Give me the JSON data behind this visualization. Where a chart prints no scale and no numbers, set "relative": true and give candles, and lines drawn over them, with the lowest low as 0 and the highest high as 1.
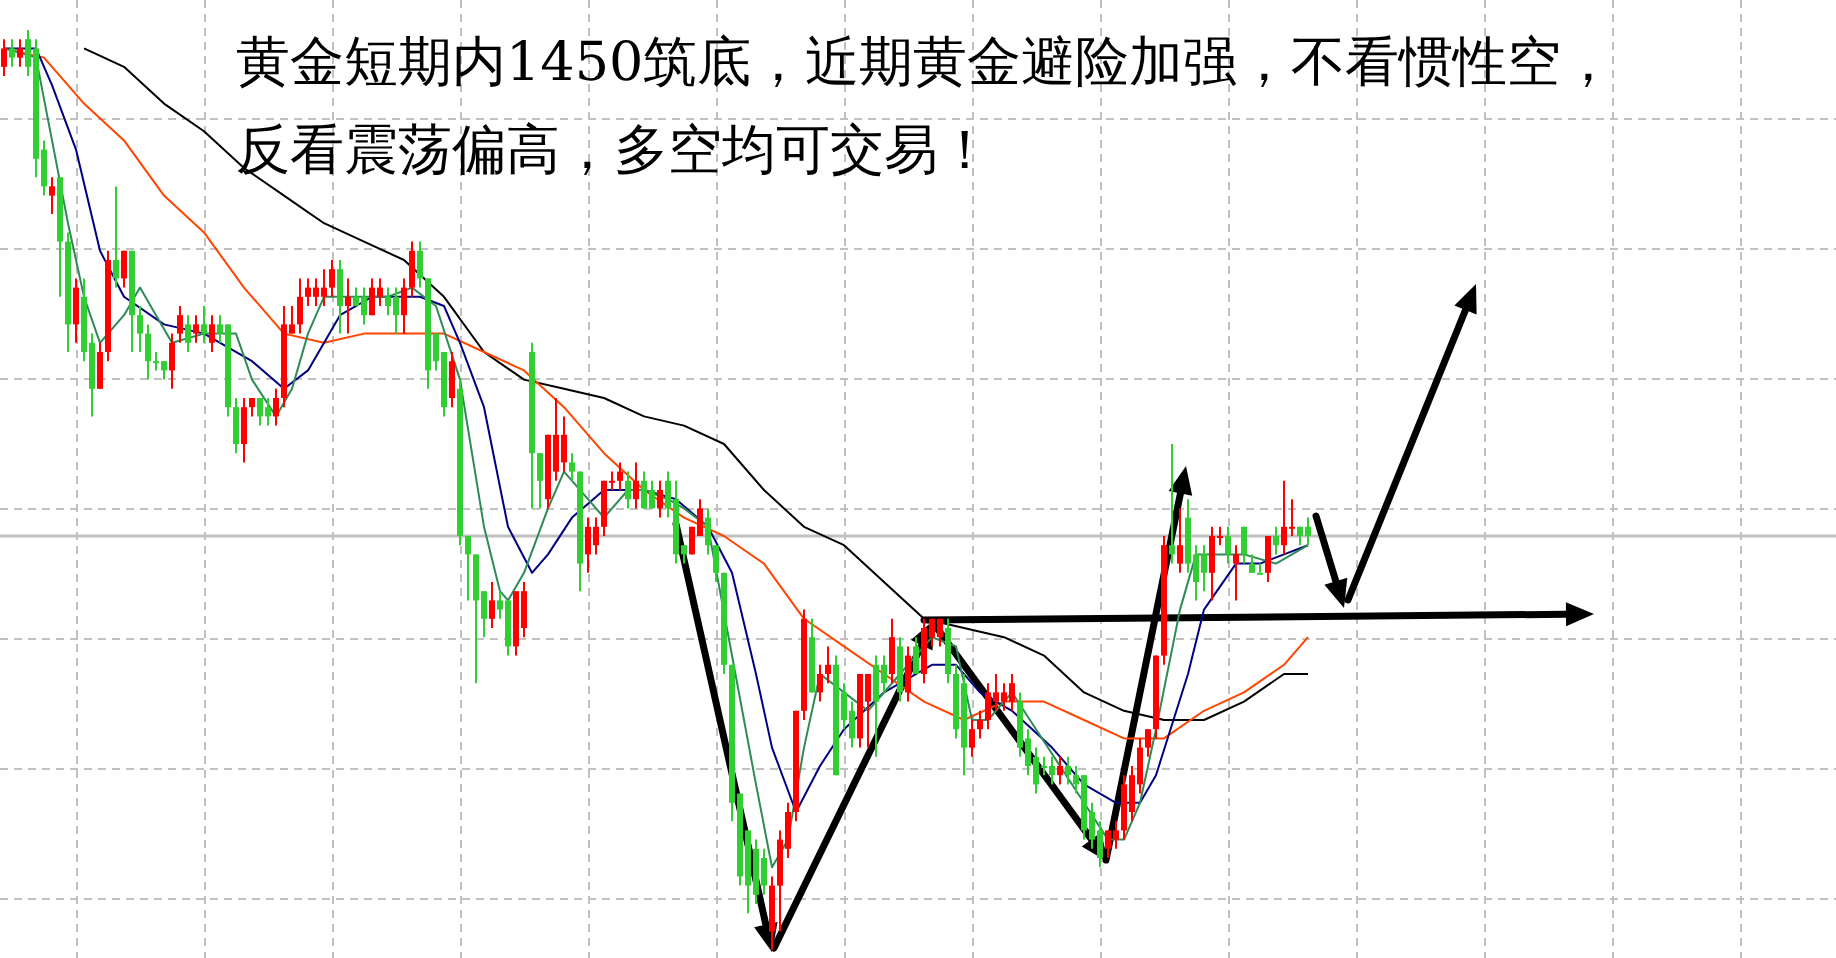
{
  "chart_data": {
    "type": "candlestick",
    "title": "黄金短期内1450筑底，近期黄金避险加强，不看惯性空，反看震荡偏高，多空均可交易！",
    "relative": true,
    "grid": true,
    "categories": [
      null,
      null,
      null,
      null,
      null,
      null,
      null,
      null,
      null,
      null,
      null,
      null,
      null,
      null,
      null,
      null,
      null,
      null,
      null,
      null,
      null,
      null,
      null,
      null,
      null,
      null,
      null,
      null,
      null,
      null,
      null,
      null,
      null,
      null,
      null,
      null,
      null,
      null,
      null,
      null,
      null,
      null,
      null,
      null,
      null,
      null,
      null,
      null,
      null,
      null,
      null,
      null,
      null,
      null,
      null,
      null,
      null,
      null,
      null,
      null,
      null,
      null,
      null,
      null,
      null,
      null,
      null,
      null,
      null,
      null,
      null,
      null,
      null,
      null,
      null,
      null,
      null,
      null,
      null,
      null,
      null,
      null,
      null,
      null,
      null,
      null,
      null,
      null,
      null,
      null,
      null,
      null,
      null,
      null,
      null,
      null,
      null,
      null,
      null,
      null,
      null,
      null,
      null,
      null,
      null,
      null,
      null,
      null,
      null,
      null,
      null,
      null,
      null,
      null,
      null,
      null,
      null,
      null,
      null,
      null,
      null,
      null,
      null,
      null,
      null,
      null,
      null,
      null,
      null,
      null,
      null,
      null,
      null,
      null,
      null,
      null,
      null,
      null,
      null,
      null,
      null,
      null,
      null,
      null,
      null,
      null,
      null,
      null,
      null,
      null,
      null,
      null,
      null,
      null,
      null,
      null,
      null,
      null,
      null,
      null,
      null,
      null,
      null,
      null
    ],
    "ohlc": [
      [
        0.96,
        0.99,
        0.95,
        0.98
      ],
      [
        0.98,
        0.99,
        0.96,
        0.97
      ],
      [
        0.97,
        0.99,
        0.96,
        0.98
      ],
      [
        0.99,
        1,
        0.95,
        0.96
      ],
      [
        0.98,
        0.99,
        0.84,
        0.86
      ],
      [
        0.87,
        0.88,
        0.82,
        0.83
      ],
      [
        0.82,
        0.84,
        0.8,
        0.83
      ],
      [
        0.84,
        0.84,
        0.71,
        0.77
      ],
      [
        0.77,
        0.78,
        0.65,
        0.68
      ],
      [
        0.68,
        0.73,
        0.66,
        0.72
      ],
      [
        0.71,
        0.73,
        0.64,
        0.65
      ],
      [
        0.66,
        0.67,
        0.58,
        0.61
      ],
      [
        0.61,
        0.66,
        0.61,
        0.65
      ],
      [
        0.65,
        0.76,
        0.64,
        0.75
      ],
      [
        0.75,
        0.83,
        0.72,
        0.73
      ],
      [
        0.73,
        0.76,
        0.72,
        0.76
      ],
      [
        0.76,
        0.76,
        0.65,
        0.69
      ],
      [
        0.69,
        0.7,
        0.65,
        0.67
      ],
      [
        0.67,
        0.68,
        0.62,
        0.64
      ],
      [
        0.64,
        0.65,
        0.63,
        0.64
      ],
      [
        0.64,
        0.64,
        0.62,
        0.63
      ],
      [
        0.63,
        0.67,
        0.61,
        0.66
      ],
      [
        0.67,
        0.7,
        0.66,
        0.69
      ],
      [
        0.68,
        0.69,
        0.65,
        0.66
      ],
      [
        0.67,
        0.69,
        0.66,
        0.68
      ],
      [
        0.68,
        0.7,
        0.66,
        0.67
      ],
      [
        0.66,
        0.69,
        0.65,
        0.68
      ],
      [
        0.68,
        0.69,
        0.66,
        0.67
      ],
      [
        0.68,
        0.68,
        0.58,
        0.59
      ],
      [
        0.59,
        0.6,
        0.54,
        0.55
      ],
      [
        0.55,
        0.6,
        0.53,
        0.59
      ],
      [
        0.59,
        0.6,
        0.58,
        0.6
      ],
      [
        0.6,
        0.6,
        0.57,
        0.58
      ],
      [
        0.59,
        0.6,
        0.57,
        0.58
      ],
      [
        0.58,
        0.61,
        0.57,
        0.6
      ],
      [
        0.6,
        0.7,
        0.59,
        0.68
      ],
      [
        0.67,
        0.7,
        0.67,
        0.68
      ],
      [
        0.68,
        0.73,
        0.67,
        0.71
      ],
      [
        0.71,
        0.73,
        0.7,
        0.72
      ],
      [
        0.71,
        0.73,
        0.7,
        0.72
      ],
      [
        0.71,
        0.74,
        0.7,
        0.72
      ],
      [
        0.72,
        0.75,
        0.71,
        0.74
      ],
      [
        0.74,
        0.75,
        0.67,
        0.7
      ],
      [
        0.7,
        0.73,
        0.67,
        0.71
      ],
      [
        0.71,
        0.72,
        0.7,
        0.7
      ],
      [
        0.71,
        0.72,
        0.68,
        0.69
      ],
      [
        0.69,
        0.73,
        0.69,
        0.72
      ],
      [
        0.71,
        0.73,
        0.7,
        0.72
      ],
      [
        0.71,
        0.72,
        0.69,
        0.7
      ],
      [
        0.71,
        0.72,
        0.67,
        0.69
      ],
      [
        0.69,
        0.73,
        0.67,
        0.72
      ],
      [
        0.72,
        0.77,
        0.71,
        0.76
      ],
      [
        0.76,
        0.77,
        0.72,
        0.73
      ],
      [
        0.73,
        0.73,
        0.61,
        0.63
      ],
      [
        0.67,
        0.67,
        0.63,
        0.64
      ],
      [
        0.65,
        0.65,
        0.58,
        0.59
      ],
      [
        0.6,
        0.65,
        0.59,
        0.64
      ],
      [
        0.61,
        0.62,
        0.44,
        0.45
      ],
      [
        0.45,
        0.45,
        0.38,
        0.43
      ],
      [
        0.43,
        0.43,
        0.29,
        0.38
      ],
      [
        0.39,
        0.39,
        0.34,
        0.36
      ],
      [
        0.36,
        0.4,
        0.35,
        0.38
      ],
      [
        0.38,
        0.39,
        0.36,
        0.37
      ],
      [
        0.38,
        0.38,
        0.32,
        0.33
      ],
      [
        0.33,
        0.39,
        0.32,
        0.39
      ],
      [
        0.35,
        0.4,
        0.34,
        0.39
      ],
      [
        0.65,
        0.66,
        0.48,
        0.54
      ],
      [
        0.54,
        0.54,
        0.48,
        0.51
      ],
      [
        0.49,
        0.56,
        0.48,
        0.56
      ],
      [
        0.52,
        0.6,
        0.51,
        0.56
      ],
      [
        0.53,
        0.58,
        0.52,
        0.56
      ],
      [
        0.53,
        0.54,
        0.51,
        0.52
      ],
      [
        0.52,
        0.52,
        0.39,
        0.42
      ],
      [
        0.43,
        0.47,
        0.41,
        0.46
      ],
      [
        0.44,
        0.47,
        0.43,
        0.46
      ],
      [
        0.46,
        0.51,
        0.45,
        0.51
      ],
      [
        0.51,
        0.52,
        0.5,
        0.51
      ],
      [
        0.51,
        0.53,
        0.5,
        0.52
      ],
      [
        0.51,
        0.52,
        0.48,
        0.49
      ],
      [
        0.49,
        0.53,
        0.48,
        0.51
      ],
      [
        0.51,
        0.52,
        0.48,
        0.48
      ],
      [
        0.5,
        0.51,
        0.48,
        0.48
      ],
      [
        0.48,
        0.51,
        0.47,
        0.5
      ],
      [
        0.51,
        0.52,
        0.47,
        0.48
      ],
      [
        0.49,
        0.51,
        0.42,
        0.43
      ],
      [
        0.44,
        0.44,
        0.42,
        0.43
      ],
      [
        0.43,
        0.46,
        0.43,
        0.46
      ],
      [
        0.45,
        0.49,
        0.45,
        0.48
      ],
      [
        0.47,
        0.48,
        0.43,
        0.44
      ],
      [
        0.44,
        0.44,
        0.4,
        0.41
      ],
      [
        0.41,
        0.41,
        0.3,
        0.31
      ],
      [
        0.31,
        0.31,
        0.14,
        0.16
      ],
      [
        0.17,
        0.17,
        0.07,
        0.08
      ],
      [
        0.13,
        0.13,
        0.04,
        0.07
      ],
      [
        0.11,
        0.12,
        0.05,
        0.06
      ],
      [
        0.1,
        0.11,
        0.06,
        0.07
      ],
      [
        0.02,
        0.08,
        0,
        0.07
      ],
      [
        0.07,
        0.13,
        0.02,
        0.12
      ],
      [
        0.11,
        0.16,
        0.1,
        0.15
      ],
      [
        0.15,
        0.26,
        0.14,
        0.26
      ],
      [
        0.26,
        0.37,
        0.25,
        0.36
      ],
      [
        0.34,
        0.36,
        0.28,
        0.28
      ],
      [
        0.28,
        0.31,
        0.27,
        0.3
      ],
      [
        0.3,
        0.33,
        0.29,
        0.31
      ],
      [
        0.31,
        0.32,
        0.19,
        0.19
      ],
      [
        0.28,
        0.29,
        0.24,
        0.25
      ],
      [
        0.26,
        0.27,
        0.22,
        0.23
      ],
      [
        0.23,
        0.3,
        0.22,
        0.3
      ],
      [
        0.27,
        0.3,
        0.22,
        0.3
      ],
      [
        0.31,
        0.32,
        0.21,
        0.27
      ],
      [
        0.31,
        0.32,
        0.28,
        0.29
      ],
      [
        0.3,
        0.36,
        0.29,
        0.34
      ],
      [
        0.33,
        0.34,
        0.27,
        0.28
      ],
      [
        0.28,
        0.33,
        0.27,
        0.32
      ],
      [
        0.33,
        0.34,
        0.3,
        0.3
      ],
      [
        0.3,
        0.36,
        0.29,
        0.35
      ],
      [
        0.34,
        0.36,
        0.33,
        0.36
      ],
      [
        0.34,
        0.36,
        0.33,
        0.36
      ],
      [
        0.35,
        0.36,
        0.29,
        0.3
      ],
      [
        0.3,
        0.31,
        0.23,
        0.24
      ],
      [
        0.29,
        0.3,
        0.19,
        0.22
      ],
      [
        0.22,
        0.25,
        0.21,
        0.24
      ],
      [
        0.24,
        0.26,
        0.23,
        0.25
      ],
      [
        0.25,
        0.29,
        0.24,
        0.28
      ],
      [
        0.27,
        0.3,
        0.26,
        0.28
      ],
      [
        0.27,
        0.29,
        0.26,
        0.28
      ],
      [
        0.27,
        0.3,
        0.26,
        0.29
      ],
      [
        0.27,
        0.28,
        0.21,
        0.22
      ],
      [
        0.23,
        0.24,
        0.19,
        0.2
      ],
      [
        0.21,
        0.22,
        0.17,
        0.18
      ],
      [
        0.2,
        0.21,
        0.19,
        0.2
      ],
      [
        0.2,
        0.21,
        0.18,
        0.19
      ],
      [
        0.19,
        0.21,
        0.18,
        0.2
      ],
      [
        0.2,
        0.21,
        0.18,
        0.19
      ],
      [
        0.19,
        0.2,
        0.17,
        0.18
      ],
      [
        0.19,
        0.19,
        0.12,
        0.13
      ],
      [
        0.15,
        0.16,
        0.11,
        0.12
      ],
      [
        0.13,
        0.14,
        0.09,
        0.1
      ],
      [
        0.11,
        0.13,
        0.1,
        0.13
      ],
      [
        0.12,
        0.14,
        0.11,
        0.13
      ],
      [
        0.13,
        0.19,
        0.12,
        0.18
      ],
      [
        0.15,
        0.2,
        0.14,
        0.19
      ],
      [
        0.18,
        0.23,
        0.17,
        0.22
      ],
      [
        0.22,
        0.24,
        0.21,
        0.24
      ],
      [
        0.24,
        0.32,
        0.23,
        0.32
      ],
      [
        0.32,
        0.45,
        0.31,
        0.44
      ],
      [
        0.44,
        0.55,
        0.42,
        0.43
      ],
      [
        0.42,
        0.48,
        0.41,
        0.44
      ],
      [
        0.47,
        0.49,
        0.41,
        0.42
      ],
      [
        0.43,
        0.44,
        0.38,
        0.4
      ],
      [
        0.43,
        0.44,
        0.39,
        0.41
      ],
      [
        0.41,
        0.46,
        0.38,
        0.45
      ],
      [
        0.45,
        0.46,
        0.44,
        0.45
      ],
      [
        0.45,
        0.46,
        0.42,
        0.43
      ],
      [
        0.42,
        0.44,
        0.38,
        0.43
      ],
      [
        0.46,
        0.46,
        0.42,
        0.43
      ],
      [
        0.42,
        0.43,
        0.41,
        0.41
      ],
      [
        0.41,
        0.42,
        0.41,
        0.41
      ],
      [
        0.41,
        0.45,
        0.4,
        0.45
      ],
      [
        0.45,
        0.46,
        0.43,
        0.44
      ],
      [
        0.44,
        0.51,
        0.43,
        0.46
      ],
      [
        0.46,
        0.49,
        0.45,
        0.46
      ],
      [
        0.46,
        0.46,
        0.44,
        0.45
      ],
      [
        0.46,
        0.47,
        0.44,
        0.45
      ]
    ],
    "colors": [
      "#ff0000",
      "#32cd32",
      "#ff0000",
      "#32cd32",
      "#32cd32",
      "#32cd32",
      "#ff0000",
      "#32cd32",
      "#32cd32",
      "#ff0000",
      "#32cd32",
      "#32cd32",
      "#ff0000",
      "#ff0000",
      "#32cd32",
      "#ff0000",
      "#32cd32",
      "#32cd32",
      "#32cd32",
      "#32cd32",
      "#32cd32",
      "#ff0000",
      "#ff0000",
      "#32cd32",
      "#ff0000",
      "#32cd32",
      "#ff0000",
      "#32cd32",
      "#32cd32",
      "#32cd32",
      "#ff0000",
      "#ff0000",
      "#32cd32",
      "#32cd32",
      "#ff0000",
      "#ff0000",
      "#ff0000",
      "#ff0000",
      "#ff0000",
      "#ff0000",
      "#ff0000",
      "#ff0000",
      "#32cd32",
      "#ff0000",
      "#32cd32",
      "#32cd32",
      "#ff0000",
      "#ff0000",
      "#32cd32",
      "#32cd32",
      "#ff0000",
      "#ff0000",
      "#32cd32",
      "#32cd32",
      "#32cd32",
      "#32cd32",
      "#ff0000",
      "#32cd32",
      "#32cd32",
      "#32cd32",
      "#32cd32",
      "#ff0000",
      "#32cd32",
      "#32cd32",
      "#ff0000",
      "#ff0000",
      "#32cd32",
      "#32cd32",
      "#ff0000",
      "#ff0000",
      "#ff0000",
      "#32cd32",
      "#32cd32",
      "#ff0000",
      "#ff0000",
      "#ff0000",
      "#ff0000",
      "#ff0000",
      "#32cd32",
      "#ff0000",
      "#32cd32",
      "#32cd32",
      "#ff0000",
      "#32cd32",
      "#32cd32",
      "#32cd32",
      "#ff0000",
      "#ff0000",
      "#32cd32",
      "#32cd32",
      "#32cd32",
      "#32cd32",
      "#32cd32",
      "#32cd32",
      "#32cd32",
      "#32cd32",
      "#ff0000",
      "#ff0000",
      "#ff0000",
      "#ff0000",
      "#ff0000",
      "#32cd32",
      "#ff0000",
      "#ff0000",
      "#32cd32",
      "#32cd32",
      "#32cd32",
      "#ff0000",
      "#ff0000",
      "#32cd32",
      "#32cd32",
      "#ff0000",
      "#32cd32",
      "#ff0000",
      "#32cd32",
      "#ff0000",
      "#ff0000",
      "#ff0000",
      "#32cd32",
      "#32cd32",
      "#32cd32",
      "#ff0000",
      "#ff0000",
      "#ff0000",
      "#ff0000",
      "#ff0000",
      "#ff0000",
      "#32cd32",
      "#32cd32",
      "#32cd32",
      "#32cd32",
      "#32cd32",
      "#ff0000",
      "#32cd32",
      "#32cd32",
      "#32cd32",
      "#32cd32",
      "#32cd32",
      "#ff0000",
      "#ff0000",
      "#ff0000",
      "#ff0000",
      "#ff0000",
      "#ff0000",
      "#ff0000",
      "#ff0000",
      "#32cd32",
      "#ff0000",
      "#32cd32",
      "#32cd32",
      "#32cd32",
      "#ff0000",
      "#ff0000",
      "#32cd32",
      "#ff0000",
      "#32cd32",
      "#32cd32",
      "#32cd32",
      "#ff0000",
      "#32cd32",
      "#ff0000",
      "#ff0000",
      "#32cd32",
      "#32cd32"
    ],
    "series": [
      {
        "type": "line",
        "color": "#000000",
        "values": [
          null,
          null,
          null,
          null,
          null,
          null,
          null,
          null,
          null,
          null,
          0.98,
          null,
          null,
          null,
          null,
          0.96,
          null,
          null,
          null,
          null,
          0.92,
          null,
          null,
          null,
          null,
          0.89,
          null,
          null,
          null,
          null,
          0.85,
          null,
          null,
          null,
          null,
          0.82,
          null,
          null,
          null,
          null,
          0.79,
          null,
          null,
          null,
          null,
          0.77,
          null,
          null,
          null,
          null,
          0.75,
          null,
          null,
          null,
          null,
          0.71,
          null,
          null,
          null,
          null,
          0.65,
          null,
          null,
          null,
          null,
          0.62,
          null,
          null,
          null,
          null,
          0.61,
          null,
          null,
          null,
          null,
          0.6,
          null,
          null,
          null,
          null,
          0.58,
          null,
          null,
          null,
          null,
          0.57,
          null,
          null,
          null,
          null,
          0.55,
          null,
          null,
          null,
          null,
          0.5,
          null,
          null,
          null,
          null,
          0.46,
          null,
          null,
          null,
          null,
          0.44,
          null,
          null,
          null,
          null,
          0.4,
          null,
          null,
          null,
          null,
          0.36,
          null,
          null,
          null,
          null,
          0.35,
          null,
          null,
          null,
          null,
          0.34,
          null,
          null,
          null,
          null,
          0.32,
          null,
          null,
          null,
          null,
          0.28,
          null,
          null,
          null,
          null,
          0.26,
          null,
          null,
          null,
          null,
          0.25,
          null,
          null,
          null,
          null,
          0.25,
          null,
          null,
          null,
          null,
          0.27,
          null,
          null,
          null,
          null,
          0.3,
          null,
          null,
          0.3
        ]
      },
      {
        "type": "line",
        "color": "#ff4500",
        "values": [
          0.98,
          null,
          null,
          null,
          null,
          0.97,
          null,
          null,
          null,
          null,
          0.92,
          null,
          null,
          null,
          null,
          0.88,
          null,
          null,
          null,
          null,
          0.82,
          null,
          null,
          null,
          null,
          0.78,
          null,
          null,
          null,
          null,
          0.72,
          null,
          null,
          null,
          null,
          0.67,
          null,
          null,
          null,
          null,
          0.66,
          null,
          null,
          null,
          null,
          0.67,
          null,
          null,
          null,
          null,
          0.67,
          null,
          null,
          null,
          null,
          0.67,
          null,
          null,
          null,
          null,
          0.65,
          null,
          null,
          null,
          null,
          0.63,
          null,
          null,
          null,
          null,
          0.59,
          null,
          null,
          null,
          null,
          0.54,
          null,
          null,
          null,
          null,
          0.5,
          null,
          null,
          null,
          null,
          0.47,
          null,
          null,
          null,
          null,
          0.45,
          null,
          null,
          null,
          null,
          0.42,
          null,
          null,
          null,
          null,
          0.36,
          null,
          null,
          null,
          null,
          0.33,
          null,
          null,
          null,
          null,
          0.3,
          null,
          null,
          null,
          null,
          0.27,
          null,
          null,
          null,
          null,
          0.25,
          null,
          null,
          null,
          null,
          0.27,
          null,
          null,
          null,
          null,
          0.27,
          null,
          null,
          null,
          null,
          0.25,
          null,
          null,
          null,
          null,
          0.23,
          null,
          null,
          null,
          null,
          0.23,
          null,
          null,
          null,
          null,
          0.26,
          null,
          null,
          null,
          null,
          0.28,
          null,
          null,
          null,
          null,
          0.31,
          null,
          null,
          0.34
        ]
      },
      {
        "type": "line",
        "color": "#000080",
        "values": [
          0.98,
          null,
          null,
          null,
          0.98,
          null,
          0.94,
          null,
          null,
          0.87,
          null,
          null,
          0.76,
          null,
          null,
          0.71,
          null,
          null,
          null,
          null,
          0.68,
          null,
          null,
          null,
          null,
          0.67,
          null,
          null,
          null,
          null,
          null,
          0.64,
          null,
          null,
          null,
          0.61,
          null,
          null,
          0.63,
          null,
          null,
          null,
          0.69,
          null,
          null,
          null,
          0.71,
          null,
          null,
          null,
          null,
          null,
          0.71,
          null,
          null,
          0.7,
          null,
          0.66,
          null,
          null,
          0.59,
          null,
          null,
          0.46,
          null,
          null,
          0.41,
          null,
          0.43,
          null,
          null,
          0.47,
          null,
          null,
          null,
          0.5,
          null,
          null,
          null,
          null,
          0.5,
          null,
          null,
          null,
          0.49,
          null,
          null,
          null,
          0.46,
          null,
          null,
          0.41,
          null,
          null,
          0.3,
          null,
          0.22,
          null,
          null,
          0.15,
          null,
          null,
          0.2,
          null,
          null,
          0.24,
          null,
          null,
          null,
          null,
          0.28,
          null,
          null,
          null,
          null,
          null,
          0.31,
          null,
          null,
          0.31,
          null,
          null,
          0.28,
          null,
          null,
          null,
          0.26,
          null,
          null,
          null,
          null,
          0.22,
          null,
          null,
          null,
          0.18,
          null,
          null,
          null,
          0.16,
          null,
          null,
          0.16,
          null,
          0.19,
          null,
          null,
          null,
          0.3,
          null,
          0.37,
          null,
          null,
          null,
          0.42,
          null,
          null,
          0.42,
          null,
          null,
          0.43,
          null,
          null,
          0.44
        ]
      },
      {
        "type": "line",
        "color": "#2e8b57",
        "values": [
          0.98,
          null,
          null,
          null,
          0.97,
          null,
          0.88,
          null,
          0.79,
          null,
          0.71,
          null,
          0.66,
          null,
          null,
          0.69,
          null,
          0.72,
          null,
          0.69,
          null,
          0.66,
          null,
          null,
          null,
          0.67,
          null,
          null,
          null,
          0.67,
          null,
          0.62,
          null,
          null,
          0.58,
          null,
          0.61,
          null,
          0.67,
          null,
          0.71,
          null,
          null,
          null,
          0.71,
          null,
          null,
          null,
          0.71,
          null,
          null,
          0.72,
          null,
          null,
          0.7,
          null,
          null,
          0.62,
          null,
          null,
          0.46,
          null,
          0.39,
          0.38,
          null,
          0.41,
          null,
          null,
          0.48,
          null,
          0.52,
          null,
          null,
          0.49,
          null,
          0.47,
          null,
          null,
          0.5,
          null,
          0.5,
          null,
          null,
          0.49,
          null,
          0.48,
          null,
          null,
          0.46,
          null,
          null,
          null,
          null,
          null,
          0.18,
          null,
          0.09,
          null,
          0.12,
          null,
          0.22,
          null,
          0.3,
          null,
          null,
          0.28,
          null,
          null,
          0.26,
          null,
          null,
          null,
          0.3,
          null,
          null,
          null,
          0.34,
          null,
          null,
          0.33,
          null,
          0.25,
          null,
          0.25,
          null,
          null,
          0.28,
          null,
          null,
          0.24,
          null,
          null,
          0.2,
          null,
          null,
          0.16,
          null,
          null,
          0.12,
          null,
          0.12,
          null,
          0.16,
          null,
          0.24,
          null,
          null,
          0.37,
          null,
          0.43,
          null,
          null,
          0.43,
          null,
          null,
          0.43,
          null,
          null,
          null,
          0.42,
          null,
          0.43,
          null,
          0.44
        ]
      }
    ],
    "ref_lines": [
      {
        "axis": "y",
        "value": 0.45,
        "color": "#c0c0c0"
      }
    ]
  }
}
